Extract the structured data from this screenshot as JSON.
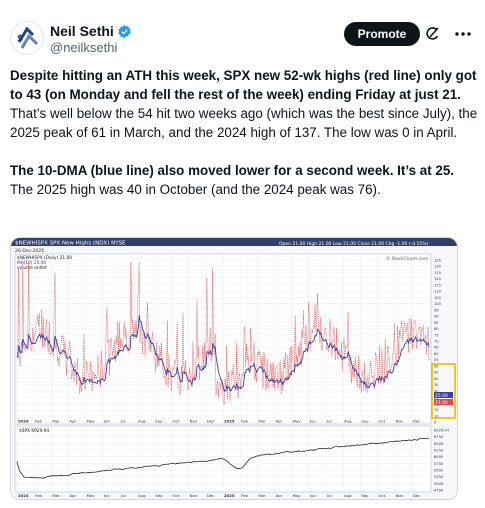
{
  "author": {
    "name": "Neil Sethi",
    "handle": "@neilksethi"
  },
  "actions": {
    "promote_label": "Promote"
  },
  "tweet": {
    "p1_a": "Despite hitting an ATH this week, SPX new 52-wk highs (red line) only got to 43 (on Monday and fell the rest of the week) ending Friday at just 21.",
    "p1_b": "  That’s well below the 54 hit two weeks ago (which was the best since July), the 2025 peak of 61 in March, and the 2024 high of 137. The low was 0 in April.",
    "p2_a": "The 10-DMA (blue line) also moved lower for a second week. It’s at 25.",
    "p2_b": " The 2025 high was 40 in October (and the 2024 peak was 76)."
  },
  "chart": {
    "title": "$NEWHISPX SPX New Highs (NDX) NYSE",
    "date": "26-Dec-2025",
    "legend1": "$NEWHISPX (Daily) 21.00",
    "legend2": "MA(10) 25.00",
    "legend3": "volume undef",
    "ohlc": "Open 21.00 High 21.00 Low 21.00 Close 21.00 Chg -1.00 (-4.55%)",
    "credit": "© StockCharts.com",
    "spx_label": "$SPX 6929.94",
    "y_ticks_top": [
      "135",
      "130",
      "125",
      "120",
      "115",
      "110",
      "105",
      "100",
      "95",
      "90",
      "85",
      "80",
      "75",
      "70",
      "65",
      "60",
      "55",
      "50",
      "45",
      "40",
      "35",
      "30",
      "25",
      "20",
      "15",
      "10",
      "5"
    ],
    "y_ticks_bottom": [
      "6929.94",
      "6750",
      "6500",
      "6250",
      "6000",
      "5750",
      "5500",
      "5250",
      "5000",
      "4750"
    ],
    "value_label_1": "25.00",
    "value_label_2": "21.00",
    "x_ticks_top": [
      "2024",
      "Feb",
      "Mar",
      "Apr",
      "May",
      "Jun",
      "Jul",
      "Aug",
      "Sep",
      "Oct",
      "Nov",
      "Dec",
      "2025",
      "Feb",
      "Mar",
      "Apr",
      "May",
      "Jun",
      "Jul",
      "Aug",
      "Sep",
      "Oct",
      "Nov",
      "Dec"
    ],
    "x_ticks_bottom": [
      "2024",
      "Feb",
      "Mar",
      "Apr",
      "May",
      "Jun",
      "Jul",
      "Aug",
      "Sep",
      "Oct",
      "Nov",
      "Dec",
      "2025",
      "Feb",
      "Mar",
      "Apr",
      "May",
      "Jun",
      "Jul",
      "Aug",
      "Sep",
      "Oct",
      "Nov",
      "Dec"
    ]
  },
  "colors": {
    "red_line": "#e2474b",
    "blue_line": "#3a3fa0",
    "highlight": "#f2c500",
    "header_bar": "#2f3f6a"
  }
}
